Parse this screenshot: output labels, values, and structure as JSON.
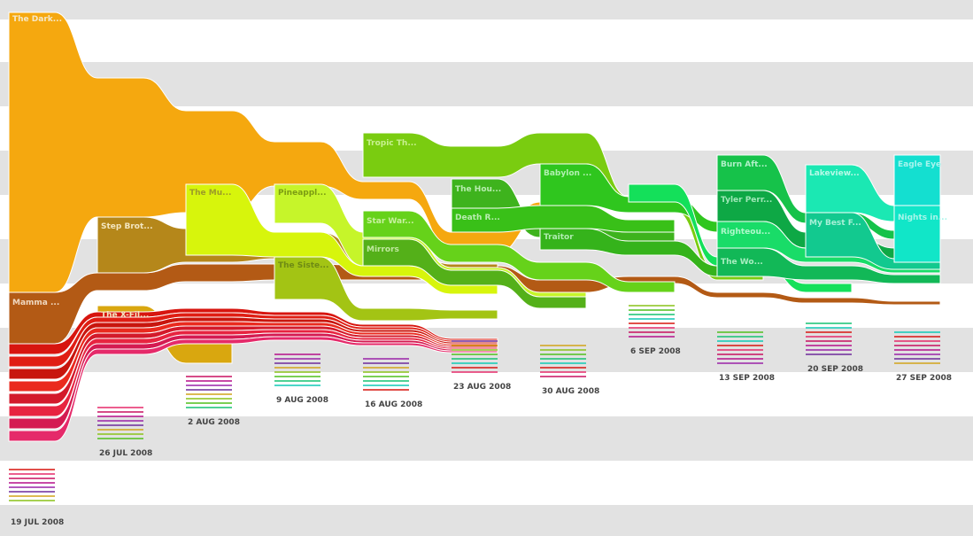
{
  "chart_data": {
    "type": "area",
    "title": "",
    "xlabel": "",
    "ylabel": "",
    "grid": "horizontal bands",
    "x": [
      "19 JUL 2008",
      "26 JUL 2008",
      "2 AUG 2008",
      "9 AUG 2008",
      "16 AUG 2008",
      "23 AUG 2008",
      "30 AUG 2008",
      "6 SEP 2008",
      "13 SEP 2008",
      "20 SEP 2008",
      "27 SEP 2008"
    ],
    "labeled_series": [
      {
        "label": "The Dark...",
        "color": "#f5a80f",
        "week": "19 JUL 2008"
      },
      {
        "label": "Mamma ...",
        "color": "#b35a15",
        "week": "19 JUL 2008"
      },
      {
        "label": "Step Brot...",
        "color": "#b5871a",
        "week": "26 JUL 2008"
      },
      {
        "label": "The X-Fil...",
        "color": "#d9a70f",
        "week": "26 JUL 2008"
      },
      {
        "label": "The Mu...",
        "color": "#d7f50c",
        "week": "2 AUG 2008"
      },
      {
        "label": "Pineappl...",
        "color": "#c6f52a",
        "week": "9 AUG 2008"
      },
      {
        "label": "The Siste...",
        "color": "#a3c414",
        "week": "9 AUG 2008"
      },
      {
        "label": "Tropic Th...",
        "color": "#7acc10",
        "week": "16 AUG 2008"
      },
      {
        "label": "Star War...",
        "color": "#66d21a",
        "week": "16 AUG 2008"
      },
      {
        "label": "Mirrors",
        "color": "#54b019",
        "week": "16 AUG 2008"
      },
      {
        "label": "The Hou...",
        "color": "#3eb31d",
        "week": "23 AUG 2008"
      },
      {
        "label": "Death R...",
        "color": "#39c018",
        "week": "23 AUG 2008"
      },
      {
        "label": "Babylon ...",
        "color": "#2fc61e",
        "week": "30 AUG 2008"
      },
      {
        "label": "Traitor",
        "color": "#35b31b",
        "week": "30 AUG 2008"
      },
      {
        "label": "Burn Aft...",
        "color": "#16c24a",
        "week": "13 SEP 2008"
      },
      {
        "label": "Tyler Perr...",
        "color": "#0ea845",
        "week": "13 SEP 2008"
      },
      {
        "label": "Righteou...",
        "color": "#19dc68",
        "week": "13 SEP 2008"
      },
      {
        "label": "The Wo...",
        "color": "#12b857",
        "week": "13 SEP 2008"
      },
      {
        "label": "Lakeview...",
        "color": "#1be8b3",
        "week": "20 SEP 2008"
      },
      {
        "label": "My Best F...",
        "color": "#12c98f",
        "week": "20 SEP 2008"
      },
      {
        "label": "Eagle Eye",
        "color": "#14dfd0",
        "week": "27 SEP 2008"
      },
      {
        "label": "Nights in...",
        "color": "#11e6c8",
        "week": "27 SEP 2008"
      }
    ]
  }
}
